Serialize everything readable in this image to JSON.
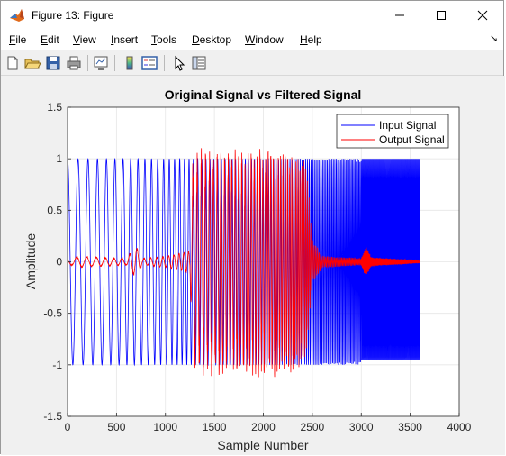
{
  "window": {
    "title": "Figure 13: Figure"
  },
  "menu": [
    "File",
    "Edit",
    "View",
    "Insert",
    "Tools",
    "Desktop",
    "Window",
    "Help"
  ],
  "colors": {
    "input": "#0000ff",
    "output": "#ff0000",
    "grid": "#e6e6e6"
  },
  "toolbar_icons": [
    "new-figure-icon",
    "open-icon",
    "save-icon",
    "print-icon",
    "link-plot-icon",
    "insert-colorbar-icon",
    "insert-legend-icon",
    "edit-plot-icon",
    "property-inspector-icon"
  ],
  "chart_data": {
    "type": "line",
    "title": "Original Signal vs Filtered Signal",
    "xlabel": "Sample Number",
    "ylabel": "Amplitude",
    "xlim": [
      0,
      4000
    ],
    "ylim": [
      -1.5,
      1.5
    ],
    "xticks": [
      0,
      500,
      1000,
      1500,
      2000,
      2500,
      3000,
      3500,
      4000
    ],
    "yticks": [
      -1.5,
      -1,
      -0.5,
      0,
      0.5,
      1,
      1.5
    ],
    "grid": true,
    "legend_position": "top-right",
    "series": [
      {
        "name": "Input Signal",
        "x_range": [
          0,
          3600
        ],
        "amplitude": 1,
        "segments": [
          {
            "x_start": 0,
            "x_end": 1250,
            "period_start": 110,
            "period_end": 45
          },
          {
            "x_start": 1250,
            "x_end": 2450,
            "period_start": 45,
            "period_end": 18
          },
          {
            "x_start": 2450,
            "x_end": 3000,
            "period_start": 18,
            "period_end": 12
          },
          {
            "x_start": 3000,
            "x_end": 3600,
            "period_start": 9,
            "period_end": 9
          }
        ]
      },
      {
        "name": "Output Signal",
        "x_range": [
          0,
          3600
        ],
        "envelope": [
          [
            0,
            0.02
          ],
          [
            100,
            0.05
          ],
          [
            600,
            0.03
          ],
          [
            700,
            0.15
          ],
          [
            760,
            0.03
          ],
          [
            1000,
            0.05
          ],
          [
            1250,
            0.1
          ],
          [
            1280,
            0.9
          ],
          [
            1400,
            1.0
          ],
          [
            1700,
            0.95
          ],
          [
            2000,
            1.0
          ],
          [
            2300,
            0.95
          ],
          [
            2440,
            0.85
          ],
          [
            2500,
            0.2
          ],
          [
            2600,
            0.05
          ],
          [
            3000,
            0.03
          ],
          [
            3050,
            0.15
          ],
          [
            3100,
            0.04
          ],
          [
            3600,
            0.01
          ]
        ],
        "peak_max": 1.15,
        "peak_min": -1.12
      }
    ]
  }
}
